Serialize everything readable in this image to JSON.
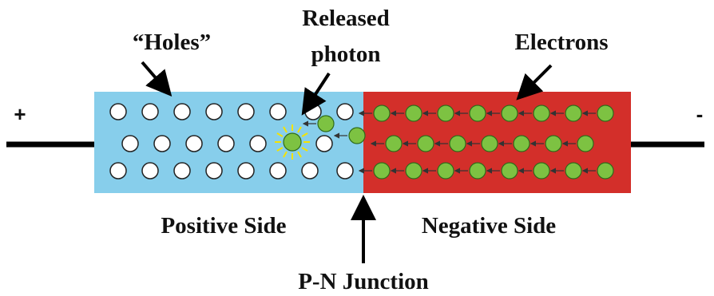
{
  "labels": {
    "holes": "“Holes”",
    "released": "Released",
    "photon": "photon",
    "electrons": "Electrons",
    "positive_side": "Positive Side",
    "negative_side": "Negative Side",
    "junction": "P-N Junction",
    "plus": "+",
    "minus": "-"
  }
}
